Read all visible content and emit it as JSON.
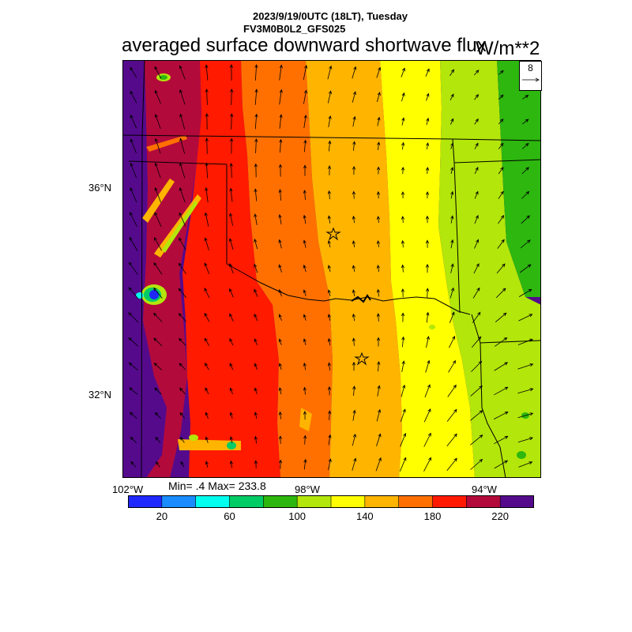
{
  "header": {
    "time_line": "2023/9/19/0UTC (18LT), Tuesday",
    "model_line": "FV3M0B0L2_GFS025",
    "title": "averaged surface downward shortwave flux",
    "units": "W/m**2"
  },
  "map": {
    "lat_labels": [
      "36°N",
      "32°N"
    ],
    "lon_labels": [
      "102°W",
      "98°W",
      "94°W"
    ],
    "markers": [
      "star-marker",
      "star-marker"
    ]
  },
  "stats": {
    "text": "Min= .4 Max= 233.8"
  },
  "colorbar": {
    "colors": [
      "#1f28ff",
      "#1a8cff",
      "#00ffee",
      "#00cc66",
      "#2db70f",
      "#b3e60a",
      "#ffff00",
      "#ffb400",
      "#ff7000",
      "#ff1a00",
      "#b30a3c",
      "#550a8c"
    ],
    "labels": [
      "20",
      "60",
      "100",
      "140",
      "180",
      "220"
    ]
  },
  "vector_reference": {
    "value": "8"
  },
  "map_colors": {
    "purple": "#550a8c",
    "crimson": "#b30a3c",
    "red": "#ff1a00",
    "orange": "#ff7000",
    "amber": "#ffb400",
    "yellow": "#ffff00",
    "lime": "#b3e60a",
    "green": "#2db70f"
  }
}
